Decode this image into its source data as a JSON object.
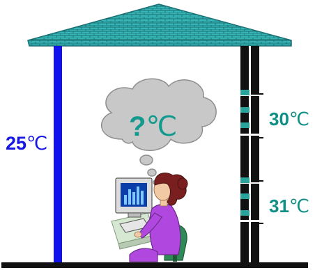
{
  "labels": {
    "left_temp_value": "25",
    "left_temp_unit": "℃",
    "cloud_value": "?",
    "cloud_unit": "℃",
    "right_upper_value": "30",
    "right_upper_unit": "℃",
    "right_lower_value": "31",
    "right_lower_unit": "℃"
  },
  "icons": {
    "roof": "tiled-roof-icon",
    "left_thermometer": "blue-thermometer-column",
    "right_thermometer": "black-teal-thermometer-column",
    "thought_cloud": "thought-cloud-icon",
    "person": "woman-at-computer-icon",
    "computer": "desktop-computer-icon"
  },
  "colors": {
    "roof": "#35b5b5",
    "roof_lines": "#1a6f73",
    "left_column": "#1111ee",
    "right_column": "#111111",
    "teal_marker": "#2aa39a",
    "cloud": "#c8c8c8",
    "cloud_outline": "#8f8f8f",
    "left_label": "#1515e6",
    "right_labels": "#0f8f86",
    "shirt": "#b048e0",
    "hair": "#7a1f1f",
    "floor": "#111111"
  }
}
